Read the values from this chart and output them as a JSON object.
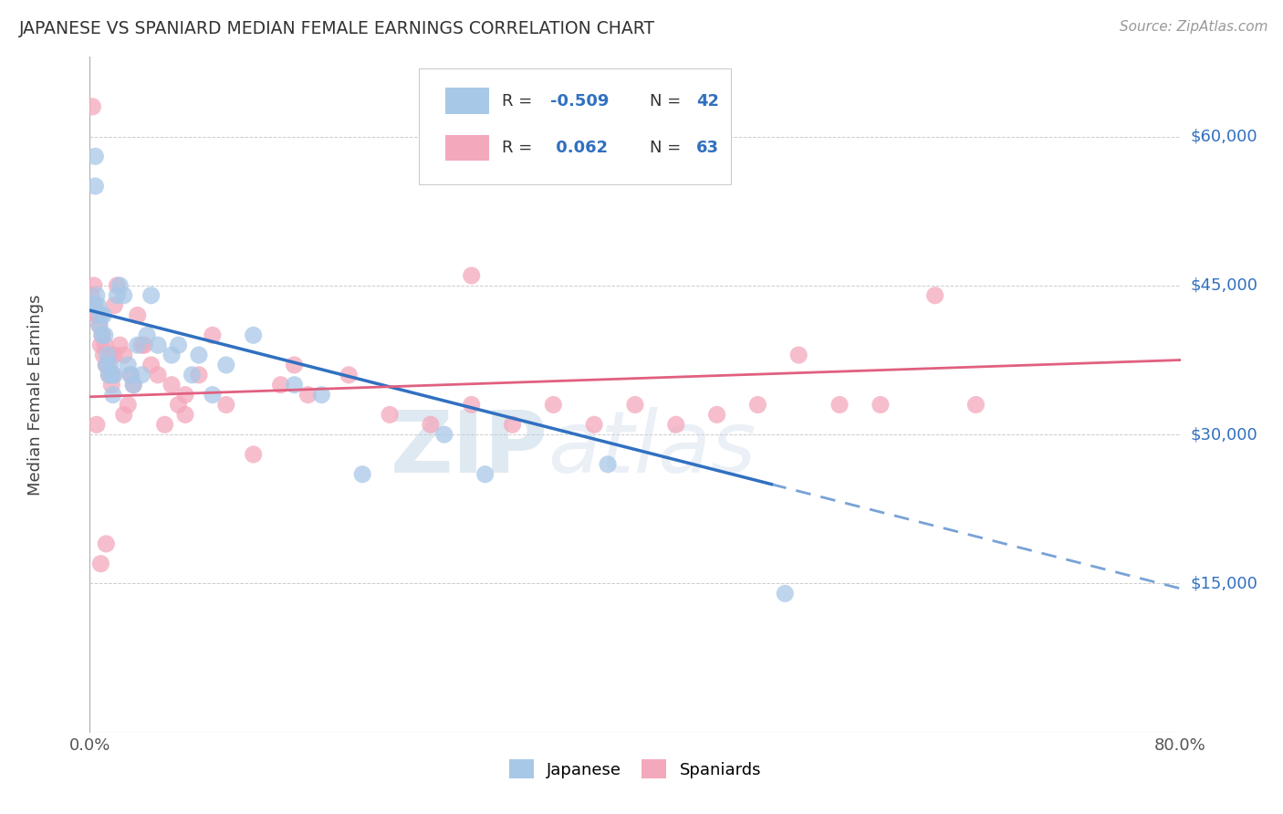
{
  "title": "JAPANESE VS SPANIARD MEDIAN FEMALE EARNINGS CORRELATION CHART",
  "source": "Source: ZipAtlas.com",
  "ylabel": "Median Female Earnings",
  "yticks": [
    0,
    15000,
    30000,
    45000,
    60000
  ],
  "ytick_labels": [
    "",
    "$15,000",
    "$30,000",
    "$45,000",
    "$60,000"
  ],
  "xmin": 0.0,
  "xmax": 0.8,
  "ymin": 0,
  "ymax": 68000,
  "R_japanese": -0.509,
  "N_japanese": 42,
  "R_spaniard": 0.062,
  "N_spaniard": 63,
  "japanese_color": "#a8c8e8",
  "spaniard_color": "#f4a8bc",
  "japanese_line_color": "#3070c0",
  "spaniard_line_color": "#e06080",
  "watermark_zip": "ZIP",
  "watermark_atlas": "atlas",
  "background_color": "#ffffff",
  "japanese_x": [
    0.002,
    0.004,
    0.004,
    0.005,
    0.006,
    0.007,
    0.008,
    0.009,
    0.01,
    0.011,
    0.012,
    0.013,
    0.014,
    0.015,
    0.016,
    0.017,
    0.018,
    0.02,
    0.022,
    0.025,
    0.028,
    0.03,
    0.032,
    0.035,
    0.038,
    0.042,
    0.045,
    0.05,
    0.06,
    0.065,
    0.075,
    0.08,
    0.09,
    0.1,
    0.12,
    0.15,
    0.17,
    0.2,
    0.26,
    0.29,
    0.38,
    0.51
  ],
  "japanese_y": [
    43000,
    58000,
    55000,
    44000,
    43000,
    41000,
    42000,
    40000,
    42000,
    40000,
    37000,
    38000,
    36000,
    37000,
    36000,
    34000,
    36000,
    44000,
    45000,
    44000,
    37000,
    36000,
    35000,
    39000,
    36000,
    40000,
    44000,
    39000,
    38000,
    39000,
    36000,
    38000,
    34000,
    37000,
    40000,
    35000,
    34000,
    26000,
    30000,
    26000,
    27000,
    14000
  ],
  "spaniard_x": [
    0.001,
    0.002,
    0.003,
    0.004,
    0.005,
    0.006,
    0.007,
    0.008,
    0.009,
    0.01,
    0.011,
    0.012,
    0.013,
    0.014,
    0.015,
    0.016,
    0.017,
    0.018,
    0.02,
    0.022,
    0.025,
    0.028,
    0.03,
    0.032,
    0.035,
    0.04,
    0.045,
    0.05,
    0.06,
    0.065,
    0.07,
    0.08,
    0.09,
    0.1,
    0.12,
    0.14,
    0.16,
    0.19,
    0.22,
    0.25,
    0.28,
    0.31,
    0.34,
    0.37,
    0.4,
    0.43,
    0.46,
    0.49,
    0.52,
    0.55,
    0.58,
    0.62,
    0.65,
    0.28,
    0.15,
    0.07,
    0.055,
    0.038,
    0.025,
    0.018,
    0.012,
    0.008,
    0.005
  ],
  "spaniard_y": [
    44000,
    63000,
    45000,
    43000,
    42000,
    42000,
    41000,
    39000,
    40000,
    38000,
    39000,
    37000,
    37000,
    36000,
    38000,
    35000,
    36000,
    43000,
    45000,
    39000,
    38000,
    33000,
    36000,
    35000,
    42000,
    39000,
    37000,
    36000,
    35000,
    33000,
    32000,
    36000,
    40000,
    33000,
    28000,
    35000,
    34000,
    36000,
    32000,
    31000,
    33000,
    31000,
    33000,
    31000,
    33000,
    31000,
    32000,
    33000,
    38000,
    33000,
    33000,
    44000,
    33000,
    46000,
    37000,
    34000,
    31000,
    39000,
    32000,
    38000,
    19000,
    17000,
    31000
  ]
}
